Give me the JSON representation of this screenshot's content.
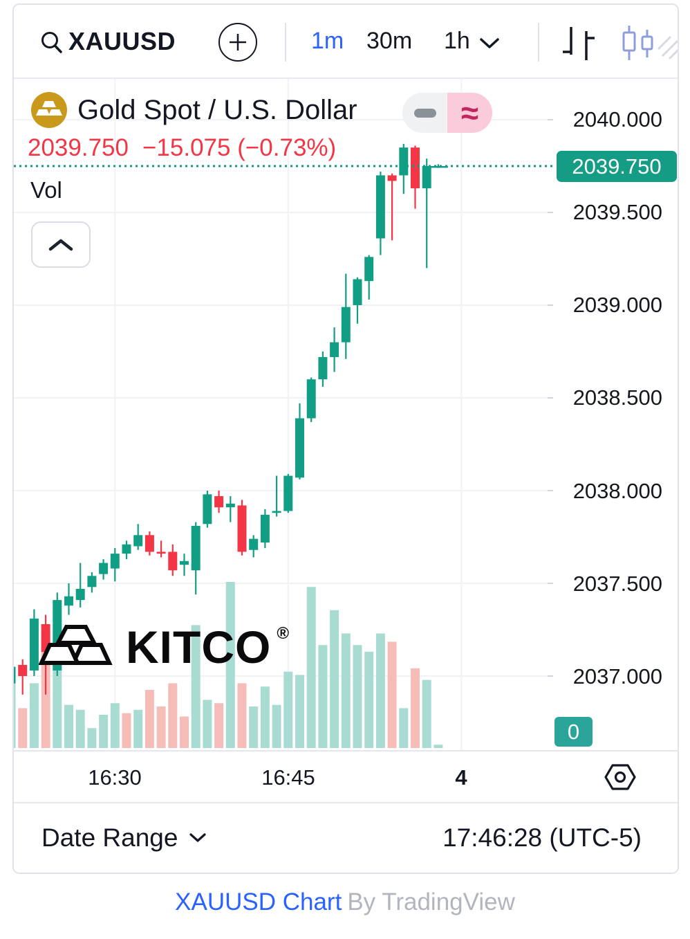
{
  "toolbar": {
    "symbol": "XAUUSD",
    "intervals": [
      {
        "label": "1m",
        "active": true
      },
      {
        "label": "30m",
        "active": false
      },
      {
        "label": "1h",
        "active": false
      }
    ]
  },
  "legend": {
    "title": "Gold Spot / U.S. Dollar",
    "price": "2039.750",
    "change": "−15.075 (−0.73%)"
  },
  "vol_label": "Vol",
  "watermark": {
    "text": "KITCO",
    "reg": "®"
  },
  "price_axis": {
    "labels": [
      "2040.000",
      "2039.500",
      "2039.000",
      "2038.500",
      "2038.000",
      "2037.500",
      "2037.000"
    ],
    "badge": "2039.750",
    "zero_badge": "0"
  },
  "time_axis": {
    "ticks": [
      "16:30",
      "16:45",
      "4"
    ]
  },
  "date_range": {
    "label": "Date Range",
    "clock": "17:46:28 (UTC-5)"
  },
  "footer": {
    "link": "XAUUSD Chart",
    "suffix": "By TradingView"
  },
  "colors": {
    "accent_blue": "#2962FF",
    "candle_up": "#129E84",
    "candle_down": "#F23645",
    "volume_up": "#A8DCD2",
    "volume_down": "#F6BCB8",
    "badge_green": "#159C85",
    "price_text_red": "#F23645",
    "grid": "#F0F2F6",
    "tick": "#D1D4DC",
    "border": "#E0E3EB",
    "text": "#131722",
    "muted": "#B2B5BE",
    "gold": "#C9991C",
    "toggle_pink_bg": "#F9CBDB",
    "toggle_pink_fg": "#C2265E",
    "toggle_gray_bg": "#F0F1F3",
    "toggle_gray_fg": "#8A9199",
    "icon_blue": "#8E9EDA"
  },
  "chart_data": {
    "type": "candlestick_with_volume",
    "symbol": "XAUUSD",
    "interval": "1m",
    "title": "Gold Spot / U.S. Dollar",
    "last_price": 2039.75,
    "change": -15.075,
    "change_pct": -0.73,
    "ylim": [
      2036.85,
      2040.22
    ],
    "price_gridlines": [
      2040.0,
      2039.5,
      2039.0,
      2038.5,
      2038.0,
      2037.5,
      2037.0
    ],
    "x_ticks": [
      {
        "index": 9,
        "label": "16:30"
      },
      {
        "index": 24,
        "label": "16:45"
      },
      {
        "index": 39,
        "label": "4"
      }
    ],
    "volume_unit": "relative 0-100",
    "candles": [
      [
        "16:21",
        2036.96,
        2037.07,
        2036.88,
        2037.05,
        40,
        1
      ],
      [
        "16:22",
        2037.06,
        2037.09,
        2036.9,
        2037.0,
        24,
        0
      ],
      [
        "16:23",
        2037.03,
        2037.36,
        2037.0,
        2037.31,
        39,
        1
      ],
      [
        "16:24",
        2037.28,
        2037.33,
        2036.9,
        2037.13,
        70,
        0
      ],
      [
        "16:25",
        2037.03,
        2037.45,
        2037.0,
        2037.41,
        74,
        1
      ],
      [
        "16:26",
        2037.38,
        2037.5,
        2037.33,
        2037.43,
        26,
        1
      ],
      [
        "16:27",
        2037.41,
        2037.61,
        2037.37,
        2037.47,
        23,
        1
      ],
      [
        "16:28",
        2037.48,
        2037.56,
        2037.45,
        2037.54,
        12,
        1
      ],
      [
        "16:29",
        2037.55,
        2037.63,
        2037.52,
        2037.61,
        20,
        1
      ],
      [
        "16:30",
        2037.58,
        2037.69,
        2037.51,
        2037.66,
        27,
        1
      ],
      [
        "16:31",
        2037.66,
        2037.73,
        2037.63,
        2037.71,
        21,
        0
      ],
      [
        "16:32",
        2037.7,
        2037.82,
        2037.68,
        2037.76,
        23,
        1
      ],
      [
        "16:33",
        2037.76,
        2037.78,
        2037.65,
        2037.67,
        35,
        0
      ],
      [
        "16:34",
        2037.67,
        2037.73,
        2037.64,
        2037.66,
        25,
        0
      ],
      [
        "16:35",
        2037.67,
        2037.71,
        2037.54,
        2037.57,
        39,
        0
      ],
      [
        "16:36",
        2037.6,
        2037.66,
        2037.54,
        2037.62,
        19,
        0
      ],
      [
        "16:37",
        2037.57,
        2037.83,
        2037.44,
        2037.81,
        74,
        1
      ],
      [
        "16:38",
        2037.82,
        2038.0,
        2037.8,
        2037.98,
        29,
        1
      ],
      [
        "16:39",
        2037.97,
        2038.0,
        2037.88,
        2037.91,
        27,
        0
      ],
      [
        "16:40",
        2037.91,
        2037.97,
        2037.83,
        2037.93,
        100,
        1
      ],
      [
        "16:41",
        2037.92,
        2037.95,
        2037.65,
        2037.67,
        39,
        0
      ],
      [
        "16:42",
        2037.68,
        2037.76,
        2037.64,
        2037.74,
        25,
        1
      ],
      [
        "16:43",
        2037.72,
        2037.9,
        2037.69,
        2037.87,
        37,
        1
      ],
      [
        "16:44",
        2037.88,
        2038.08,
        2037.86,
        2037.89,
        26,
        1
      ],
      [
        "16:45",
        2037.89,
        2038.09,
        2037.88,
        2038.08,
        46,
        1
      ],
      [
        "16:46",
        2038.07,
        2038.47,
        2038.06,
        2038.39,
        44,
        1
      ],
      [
        "16:47",
        2038.39,
        2038.61,
        2038.37,
        2038.6,
        97,
        1
      ],
      [
        "16:48",
        2038.6,
        2038.75,
        2038.56,
        2038.72,
        62,
        1
      ],
      [
        "16:49",
        2038.72,
        2038.88,
        2038.64,
        2038.8,
        83,
        1
      ],
      [
        "16:50",
        2038.8,
        2039.17,
        2038.71,
        2038.99,
        69,
        1
      ],
      [
        "16:51",
        2039.0,
        2039.15,
        2038.9,
        2039.14,
        62,
        1
      ],
      [
        "16:52",
        2039.13,
        2039.27,
        2039.03,
        2039.26,
        58,
        1
      ],
      [
        "16:53",
        2039.36,
        2039.72,
        2039.27,
        2039.7,
        69,
        1
      ],
      [
        "16:54",
        2039.7,
        2039.71,
        2039.35,
        2039.67,
        64,
        0
      ],
      [
        "16:55",
        2039.7,
        2039.87,
        2039.6,
        2039.85,
        24,
        1
      ],
      [
        "16:56",
        2039.85,
        2039.86,
        2039.52,
        2039.63,
        48,
        0
      ],
      [
        "16:57",
        2039.63,
        2039.79,
        2039.2,
        2039.75,
        41,
        1
      ],
      [
        "16:58",
        2039.75,
        2039.76,
        2039.74,
        2039.75,
        2,
        1
      ]
    ]
  }
}
